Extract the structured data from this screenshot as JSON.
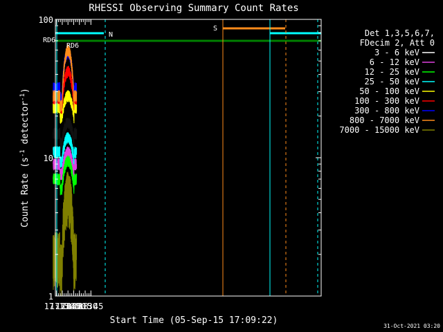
{
  "chart_data": {
    "type": "line",
    "title": "RHESSI Observing Summary Count Rates",
    "xlabel": "Start Time (05-Sep-15 17:09:22)",
    "ylabel_main": "Count Rate (s",
    "ylabel_sup1": "-1",
    "ylabel_mid": " detector",
    "ylabel_sup2": "-1",
    "ylabel_end": ")",
    "yscale": "log",
    "ylim": [
      1,
      100
    ],
    "xlim_min": [
      1032,
      1728
    ],
    "x_ticks": [
      {
        "label": "17:15",
        "min": 1035
      },
      {
        "label": "17:30",
        "min": 1050
      },
      {
        "label": "17:45",
        "min": 1065
      },
      {
        "label": "18:00",
        "min": 1080
      },
      {
        "label": "18:15",
        "min": 1095
      },
      {
        "label": "18:30",
        "min": 1110
      },
      {
        "label": "18:45",
        "min": 1125
      }
    ],
    "y_ticks": [
      {
        "label": "1",
        "value": 1
      },
      {
        "label": "10",
        "value": 10
      },
      {
        "label": "100",
        "value": 100
      }
    ],
    "legend_header": [
      "Det 1,3,5,6,7,",
      "FDecim 2, Att 0"
    ],
    "series": [
      {
        "name": "3 - 6 keV",
        "color": "#000000",
        "base": 15.0,
        "peak": 18.0
      },
      {
        "name": "6 - 12 keV",
        "color": "#e040e0",
        "base": 9.0,
        "peak": 11.0
      },
      {
        "name": "12 - 25 keV",
        "color": "#00ff00",
        "base": 7.0,
        "peak": 9.5
      },
      {
        "name": "25 - 50 keV",
        "color": "#00ffff",
        "base": 11.0,
        "peak": 14.0
      },
      {
        "name": "50 - 100 keV",
        "color": "#ffff00",
        "base": 23.0,
        "peak": 28.0
      },
      {
        "name": "100 - 300 keV",
        "color": "#ff0000",
        "base": 27.0,
        "peak": 42.0
      },
      {
        "name": "300 - 800 keV",
        "color": "#0000ff",
        "base": 32.0,
        "peak": 58.0
      },
      {
        "name": "800 - 7000 keV",
        "color": "#ff8c1a",
        "base": 28.0,
        "peak": 60.0
      },
      {
        "name": "7000 - 15000 keV",
        "color": "#808000",
        "base": 2.0,
        "peak": 5.5
      }
    ],
    "flags": [
      {
        "label": "RD6",
        "color": "#008000"
      },
      {
        "label": "RD6",
        "color": "#008000"
      },
      {
        "label": "N",
        "color": "#00ffff"
      },
      {
        "label": "S",
        "color": "#ff8c1a"
      }
    ],
    "timestamp": "31-Oct-2021 03:20"
  }
}
